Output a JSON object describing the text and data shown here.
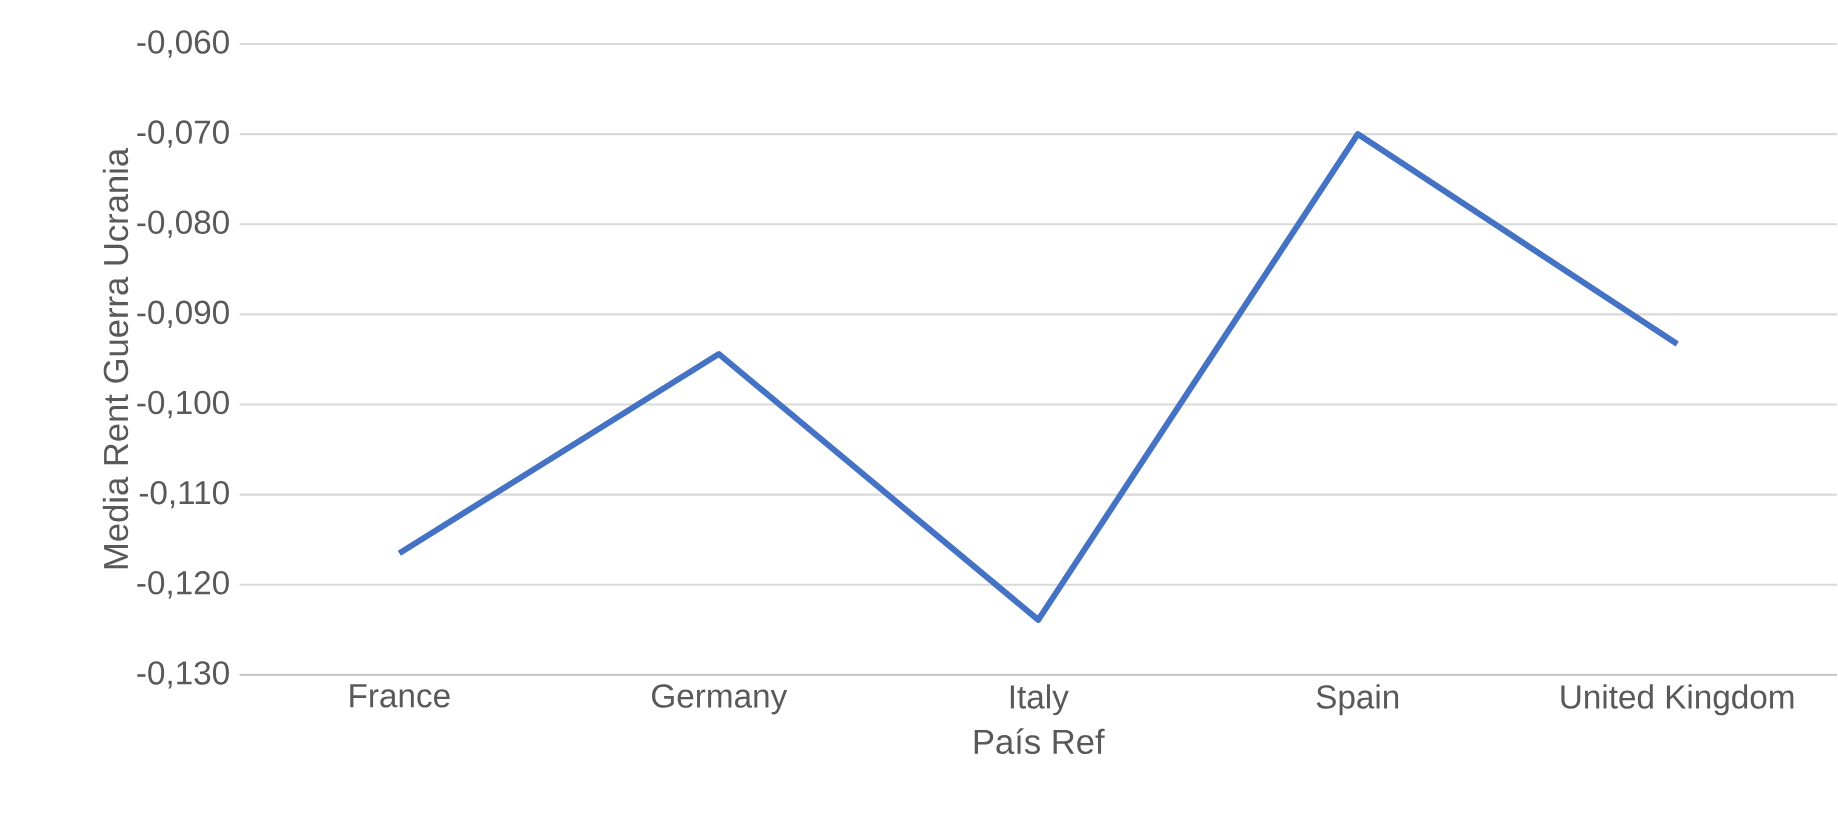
{
  "chart_data": {
    "type": "line",
    "xlabel": "País Ref",
    "ylabel": "Media  Rent Guerra Ucrania",
    "categories": [
      "France",
      "Germany",
      "Italy",
      "Spain",
      "United Kingdom"
    ],
    "series": [
      {
        "color": "#4472c4",
        "values": [
          -0.1165,
          -0.0944,
          -0.1239,
          -0.07,
          -0.0933
        ]
      }
    ],
    "ylim": [
      -0.13,
      -0.06
    ],
    "yticks": [
      {
        "value": -0.13,
        "label": "-0,130"
      },
      {
        "value": -0.12,
        "label": "-0,120"
      },
      {
        "value": -0.11,
        "label": "-0,110"
      },
      {
        "value": -0.1,
        "label": "-0,100"
      },
      {
        "value": -0.09,
        "label": "-0,090"
      },
      {
        "value": -0.08,
        "label": "-0,080"
      },
      {
        "value": -0.07,
        "label": "-0,070"
      },
      {
        "value": -0.06,
        "label": "-0,060"
      }
    ],
    "grid": "y",
    "marker": "none",
    "line_style": "solid"
  }
}
